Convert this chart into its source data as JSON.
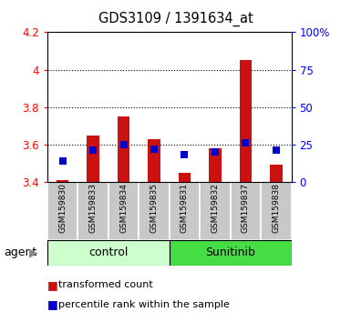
{
  "title": "GDS3109 / 1391634_at",
  "samples": [
    "GSM159830",
    "GSM159833",
    "GSM159834",
    "GSM159835",
    "GSM159831",
    "GSM159832",
    "GSM159837",
    "GSM159838"
  ],
  "groups": [
    "control",
    "control",
    "control",
    "control",
    "Sunitinib",
    "Sunitinib",
    "Sunitinib",
    "Sunitinib"
  ],
  "transformed_counts": [
    3.41,
    3.65,
    3.75,
    3.63,
    3.45,
    3.58,
    4.05,
    3.49
  ],
  "percentile_ranks": [
    14,
    21,
    25,
    22,
    18,
    20,
    26,
    21
  ],
  "baseline": 3.4,
  "ylim": [
    3.4,
    4.2
  ],
  "yticks": [
    3.4,
    3.6,
    3.8,
    4.0,
    4.2
  ],
  "right_yticks": [
    0,
    25,
    50,
    75,
    100
  ],
  "right_ylim": [
    0,
    100
  ],
  "bar_color": "#cc1111",
  "dot_color": "#0000cc",
  "sample_bg": "#c8c8c8",
  "control_bg": "#ccffcc",
  "sunitinib_bg": "#44dd44",
  "legend_items": [
    "transformed count",
    "percentile rank within the sample"
  ],
  "dot_size": 35,
  "bar_width": 0.4
}
